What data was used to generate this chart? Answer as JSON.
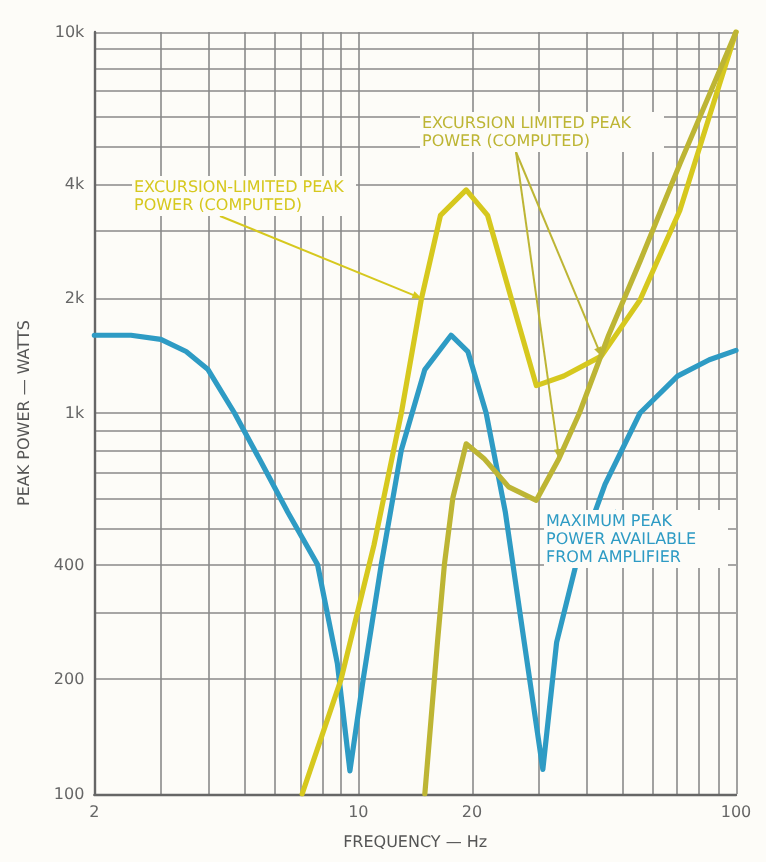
{
  "chart_data": {
    "type": "line",
    "xlabel": "FREQUENCY — Hz",
    "ylabel": "PEAK POWER — WATTS",
    "log": "xy",
    "grid": true,
    "marker": "none",
    "line_style": "solid",
    "xlim": [
      2,
      100
    ],
    "ylim": [
      100,
      10000
    ],
    "xticks": [
      2,
      {
        "value": 3,
        "label": null
      },
      {
        "value": 4,
        "label": null
      },
      {
        "value": 5,
        "label": null
      },
      {
        "value": 6,
        "label": null
      },
      {
        "value": 7,
        "label": null
      },
      {
        "value": 8,
        "label": null
      },
      {
        "value": 9,
        "label": null
      },
      10,
      20,
      {
        "value": 30,
        "label": null
      },
      {
        "value": 40,
        "label": null
      },
      {
        "value": 50,
        "label": null
      },
      {
        "value": 60,
        "label": null
      },
      {
        "value": 70,
        "label": null
      },
      {
        "value": 80,
        "label": null
      },
      {
        "value": 90,
        "label": null
      },
      100
    ],
    "yticks": [
      100,
      200,
      {
        "value": 300,
        "label": null
      },
      400,
      {
        "value": 500,
        "label": null
      },
      {
        "value": 600,
        "label": null
      },
      {
        "value": 700,
        "label": null
      },
      {
        "value": 800,
        "label": null
      },
      {
        "value": 900,
        "label": null
      },
      {
        "value": 1000,
        "label": "1k"
      },
      {
        "value": 2000,
        "label": "2k"
      },
      {
        "value": 3000,
        "label": null
      },
      {
        "value": 4000,
        "label": "4k"
      },
      {
        "value": 5000,
        "label": null
      },
      {
        "value": 6000,
        "label": null
      },
      {
        "value": 7000,
        "label": null
      },
      {
        "value": 8000,
        "label": null
      },
      {
        "value": 9000,
        "label": null
      },
      {
        "value": 10000,
        "label": "10k"
      }
    ],
    "series": [
      {
        "name": "MAXIMUM PEAK POWER AVAILABLE FROM AMPLIFIER",
        "color": "#2e9bc4",
        "x": [
          2,
          2.5,
          3,
          3.5,
          4,
          4.7,
          5.5,
          6.5,
          7.8,
          8.8,
          9.5,
          10.3,
          11.5,
          13,
          15,
          17.6,
          19.5,
          21.8,
          24.5,
          27.5,
          30.8,
          33.5,
          37.7,
          45,
          55.7,
          70,
          85,
          100
        ],
        "values": [
          1600,
          1600,
          1560,
          1450,
          1300,
          1000,
          750,
          550,
          400,
          220,
          115,
          200,
          400,
          800,
          1300,
          1600,
          1450,
          1000,
          550,
          250,
          116,
          250,
          400,
          650,
          1000,
          1250,
          1380,
          1460
        ]
      },
      {
        "name": "EXCURSION-LIMITED PEAK POWER (COMPUTED)",
        "color": "#d6c81e",
        "x": [
          7.1,
          9,
          11,
          13,
          14.7,
          16.5,
          19.3,
          22,
          25.4,
          29.6,
          35,
          44,
          55.7,
          71,
          85,
          100
        ],
        "values": [
          100,
          200,
          450,
          1000,
          2000,
          3300,
          3850,
          3300,
          2000,
          1180,
          1250,
          1410,
          1980,
          3400,
          6000,
          10000
        ]
      },
      {
        "name": "EXCURSION LIMITED PEAK POWER (COMPUTED)",
        "color": "#bdb534",
        "x": [
          15,
          16.2,
          16.9,
          17.8,
          19.3,
          21.5,
          25,
          29.6,
          34,
          38.5,
          46,
          55.7,
          71,
          100
        ],
        "values": [
          100,
          250,
          400,
          600,
          830,
          760,
          640,
          590,
          760,
          1000,
          1600,
          2500,
          4500,
          10000
        ]
      }
    ]
  }
}
